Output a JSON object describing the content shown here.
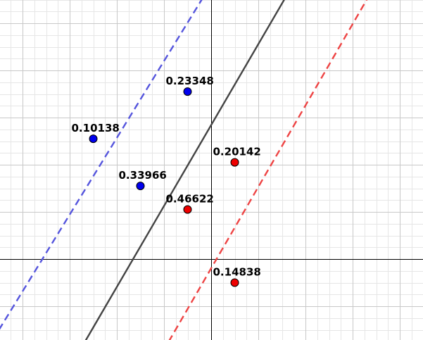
{
  "diagram": {
    "kind": "svm-margin-plot",
    "grid": true,
    "axes": true,
    "x_range": [
      -9,
      9
    ],
    "y_range": [
      -3.5,
      11
    ],
    "minor_step": 0.5,
    "major_step": 2,
    "colors": {
      "grid_minor": "#e6e6e6",
      "grid_major": "#c8c8c8",
      "axis": "#000000",
      "decision_line": "#444444",
      "positive_margin": "#5555dd",
      "negative_margin": "#ee4444",
      "positive_point": "#0000ee",
      "negative_point": "#ee0000"
    },
    "lines": [
      {
        "name": "decision-boundary",
        "style": "solid",
        "color_key": "decision_line",
        "points": [
          [
            -5.35,
            -3.5
          ],
          [
            3.1,
            11
          ]
        ]
      },
      {
        "name": "margin-positive",
        "style": "dashed",
        "color_key": "positive_margin",
        "points": [
          [
            -9,
            -3.0
          ],
          [
            -0.4,
            11
          ]
        ]
      },
      {
        "name": "margin-negative",
        "style": "dashed",
        "color_key": "negative_margin",
        "points": [
          [
            -1.8,
            -3.5
          ],
          [
            6.6,
            11
          ]
        ]
      }
    ],
    "points": [
      {
        "name": "point-0-23348",
        "x": -1.0,
        "y": 7.1,
        "class": "positive",
        "label": "0.23348"
      },
      {
        "name": "point-0-10138",
        "x": -5.0,
        "y": 5.1,
        "class": "positive",
        "label": "0.10138"
      },
      {
        "name": "point-0-33966",
        "x": -3.0,
        "y": 3.1,
        "class": "positive",
        "label": "0.33966"
      },
      {
        "name": "point-0-20142",
        "x": 1.0,
        "y": 4.1,
        "class": "negative",
        "label": "0.20142"
      },
      {
        "name": "point-0-46622",
        "x": -1.0,
        "y": 2.1,
        "class": "negative",
        "label": "0.46622"
      },
      {
        "name": "point-0-14838",
        "x": 1.0,
        "y": -1.0,
        "class": "negative",
        "label": "0.14838"
      }
    ]
  }
}
